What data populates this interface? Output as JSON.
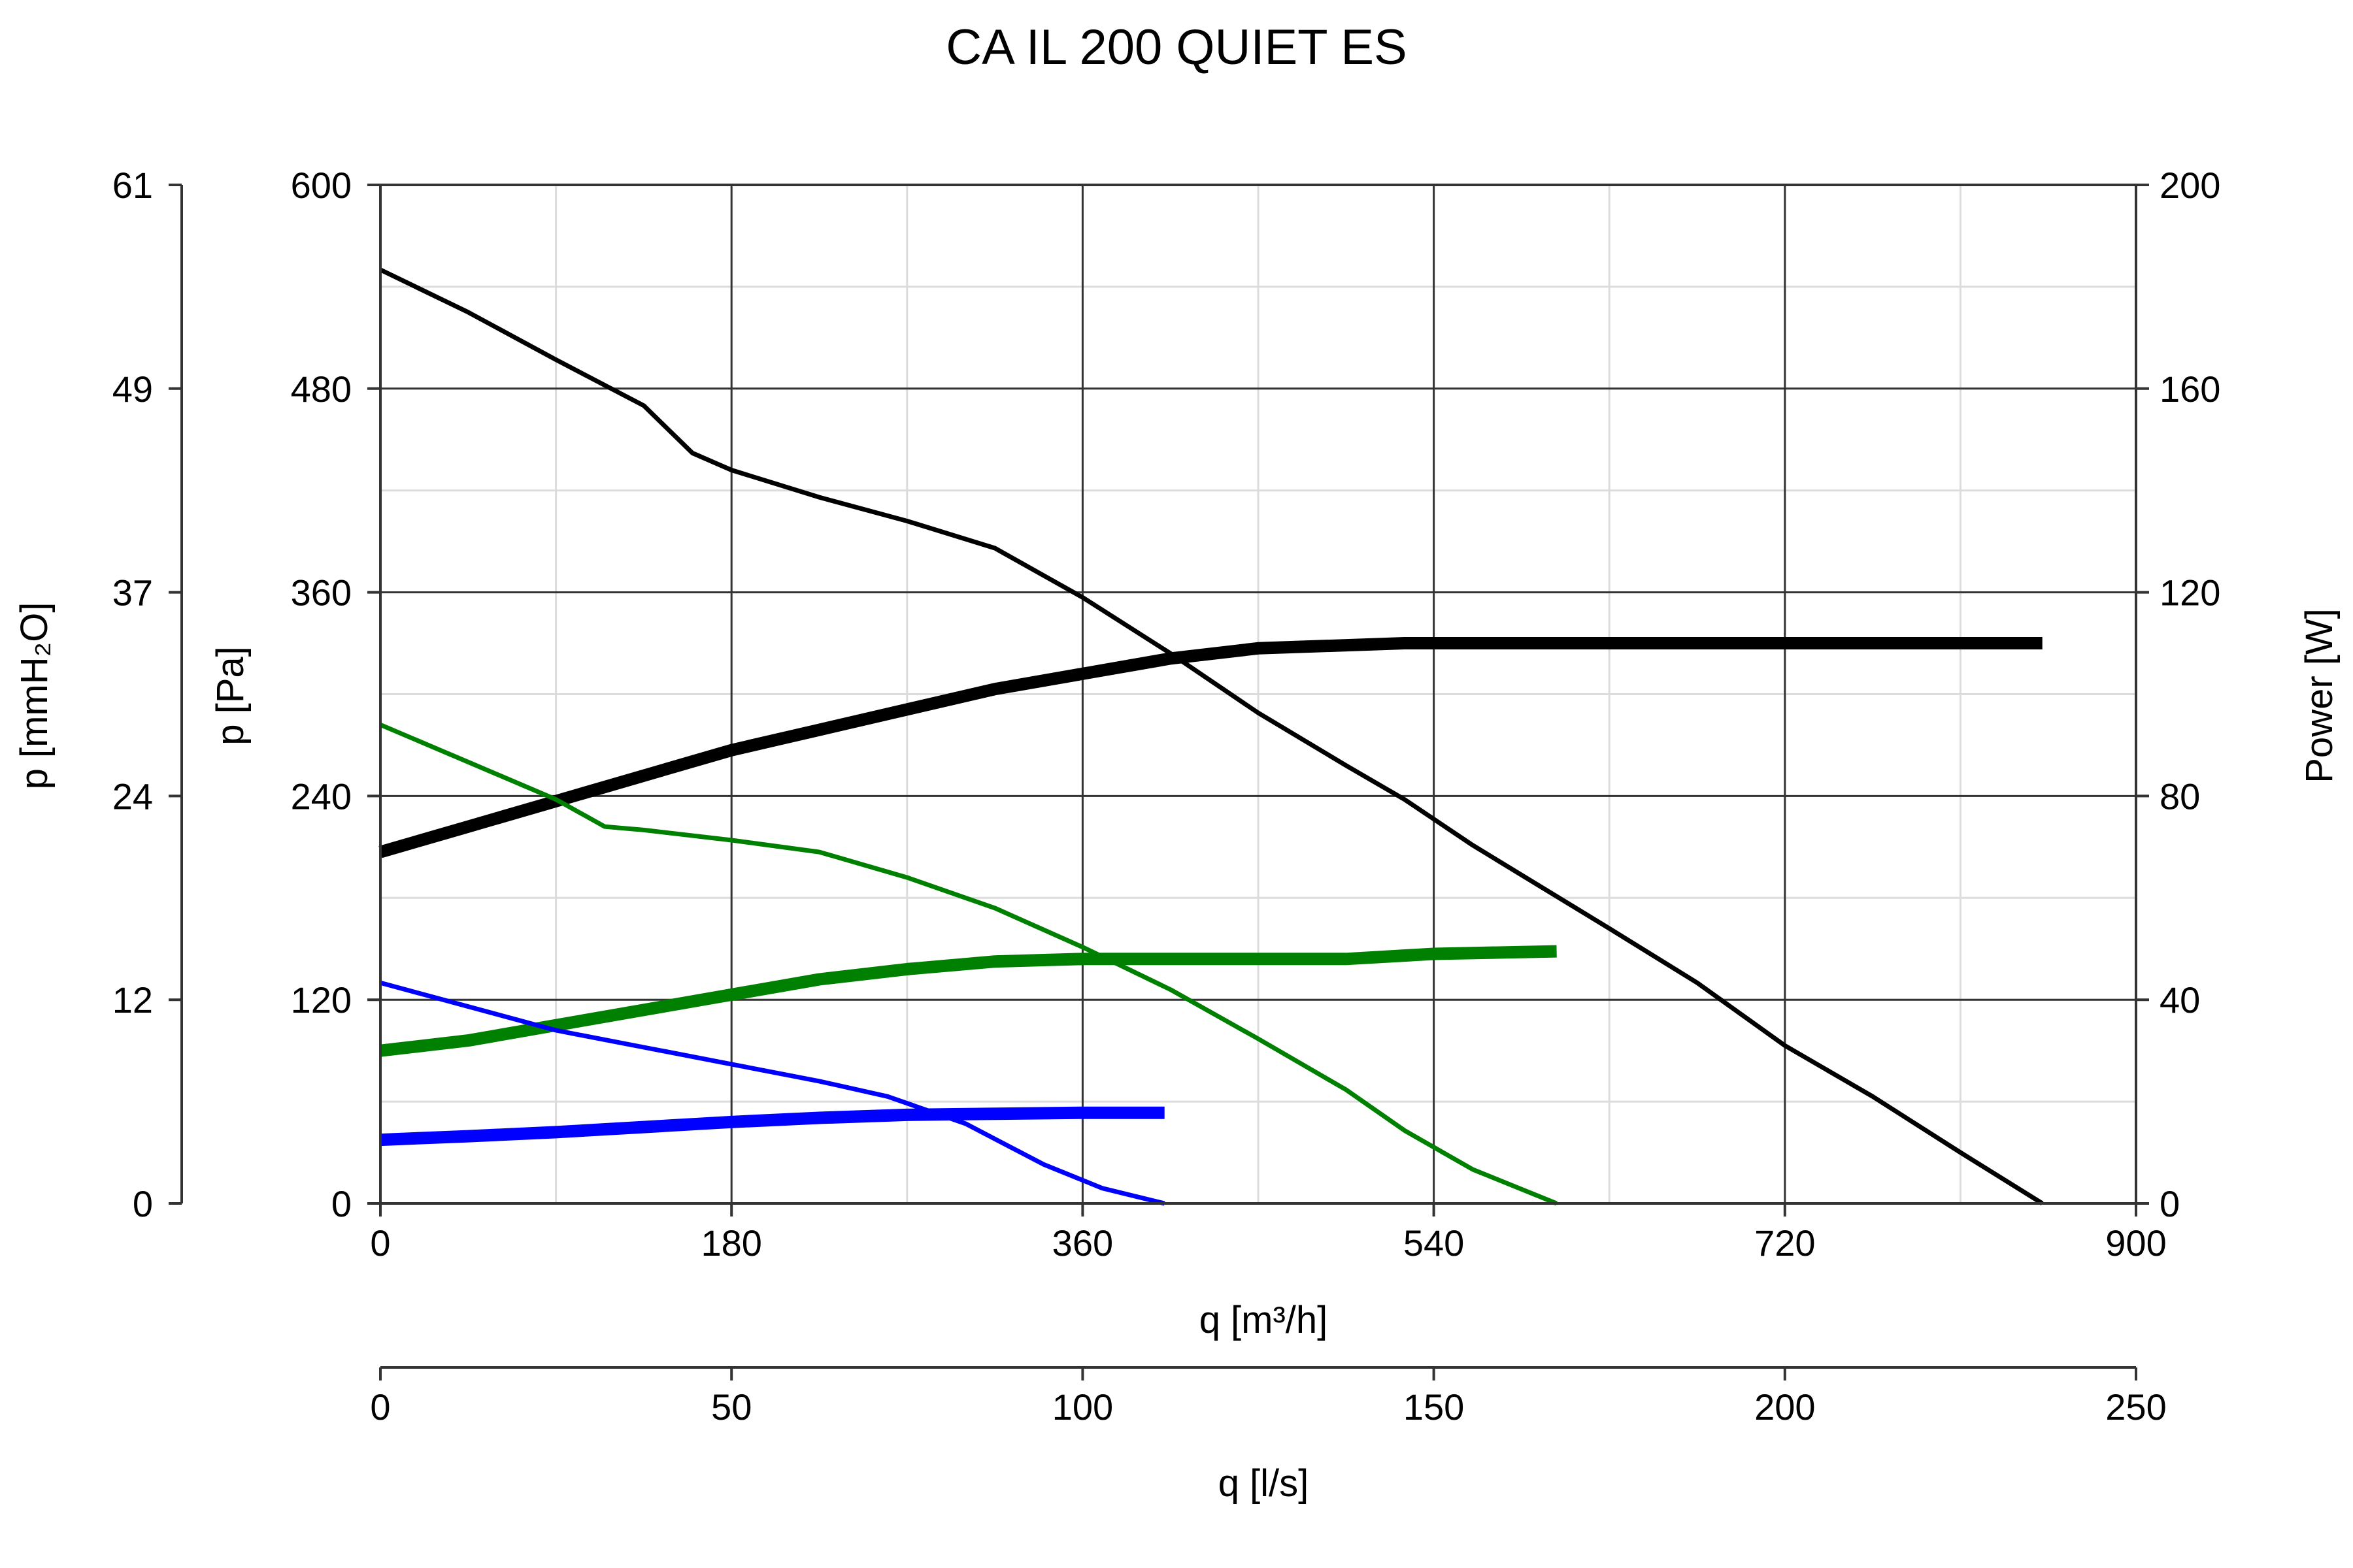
{
  "chart_data": {
    "type": "line",
    "title": "CA IL 200 QUIET ES",
    "x_axis": {
      "label": "q [m³/h]",
      "range": [
        0,
        900
      ],
      "ticks": [
        "0",
        "180",
        "360",
        "540",
        "720",
        "900"
      ],
      "minor_grid_step": 90
    },
    "x2_axis": {
      "label": "q [l/s]",
      "range": [
        0,
        250
      ],
      "ticks": [
        "0",
        "50",
        "100",
        "150",
        "200",
        "250"
      ]
    },
    "y_axis": {
      "label": "p [Pa]",
      "range": [
        0,
        600
      ],
      "ticks": [
        "0",
        "120",
        "240",
        "360",
        "480",
        "600"
      ],
      "minor_grid_step": 60
    },
    "y2_axis": {
      "label": "p [mmH₂O]",
      "range": [
        0,
        61
      ],
      "ticks": [
        "0",
        "12",
        "24",
        "37",
        "49",
        "61"
      ]
    },
    "y3_axis": {
      "label": "Power [W]",
      "range": [
        0,
        200
      ],
      "ticks": [
        "0",
        "40",
        "80",
        "120",
        "160",
        "200"
      ]
    },
    "grid": true,
    "series": [
      {
        "kind": "pressure",
        "color": "#000000",
        "points": [
          [
            0,
            550
          ],
          [
            45,
            525
          ],
          [
            90,
            497
          ],
          [
            135,
            470
          ],
          [
            160,
            442
          ],
          [
            180,
            432
          ],
          [
            225,
            416
          ],
          [
            270,
            402
          ],
          [
            315,
            386
          ],
          [
            360,
            357
          ],
          [
            405,
            324
          ],
          [
            450,
            289
          ],
          [
            495,
            258
          ],
          [
            525,
            238
          ],
          [
            560,
            211
          ],
          [
            630,
            162
          ],
          [
            675,
            130
          ],
          [
            720,
            93
          ],
          [
            765,
            63
          ],
          [
            810,
            30
          ],
          [
            852,
            0
          ]
        ]
      },
      {
        "kind": "power",
        "color": "#000000",
        "points": [
          [
            0,
            69
          ],
          [
            45,
            74
          ],
          [
            90,
            79
          ],
          [
            135,
            84
          ],
          [
            180,
            89
          ],
          [
            225,
            93
          ],
          [
            270,
            97
          ],
          [
            315,
            101
          ],
          [
            360,
            104
          ],
          [
            405,
            107
          ],
          [
            450,
            109
          ],
          [
            525,
            110
          ],
          [
            600,
            110
          ],
          [
            700,
            110
          ],
          [
            852,
            110
          ]
        ]
      },
      {
        "kind": "pressure",
        "color": "#008000",
        "points": [
          [
            0,
            282
          ],
          [
            45,
            260
          ],
          [
            90,
            238
          ],
          [
            115,
            222
          ],
          [
            135,
            220
          ],
          [
            180,
            214
          ],
          [
            225,
            207
          ],
          [
            270,
            192
          ],
          [
            315,
            174
          ],
          [
            360,
            151
          ],
          [
            405,
            126
          ],
          [
            450,
            97
          ],
          [
            495,
            67
          ],
          [
            525,
            43
          ],
          [
            560,
            20
          ],
          [
            603,
            0
          ]
        ]
      },
      {
        "kind": "power",
        "color": "#008000",
        "points": [
          [
            0,
            30
          ],
          [
            45,
            32
          ],
          [
            90,
            35
          ],
          [
            135,
            38
          ],
          [
            180,
            41
          ],
          [
            225,
            44
          ],
          [
            270,
            46
          ],
          [
            315,
            47.5
          ],
          [
            360,
            48
          ],
          [
            405,
            48
          ],
          [
            450,
            48
          ],
          [
            495,
            48
          ],
          [
            540,
            49
          ],
          [
            603,
            49.5
          ]
        ]
      },
      {
        "kind": "pressure",
        "color": "#0000ff",
        "points": [
          [
            0,
            130
          ],
          [
            45,
            116
          ],
          [
            90,
            102
          ],
          [
            135,
            92
          ],
          [
            180,
            82
          ],
          [
            225,
            72
          ],
          [
            260,
            63
          ],
          [
            300,
            47
          ],
          [
            340,
            23
          ],
          [
            370,
            9
          ],
          [
            402,
            0
          ]
        ]
      },
      {
        "kind": "power",
        "color": "#0000ff",
        "points": [
          [
            0,
            12.5
          ],
          [
            45,
            13.2
          ],
          [
            90,
            14
          ],
          [
            135,
            15
          ],
          [
            180,
            16
          ],
          [
            225,
            16.8
          ],
          [
            270,
            17.4
          ],
          [
            315,
            17.6
          ],
          [
            360,
            17.8
          ],
          [
            402,
            17.8
          ]
        ]
      }
    ]
  }
}
